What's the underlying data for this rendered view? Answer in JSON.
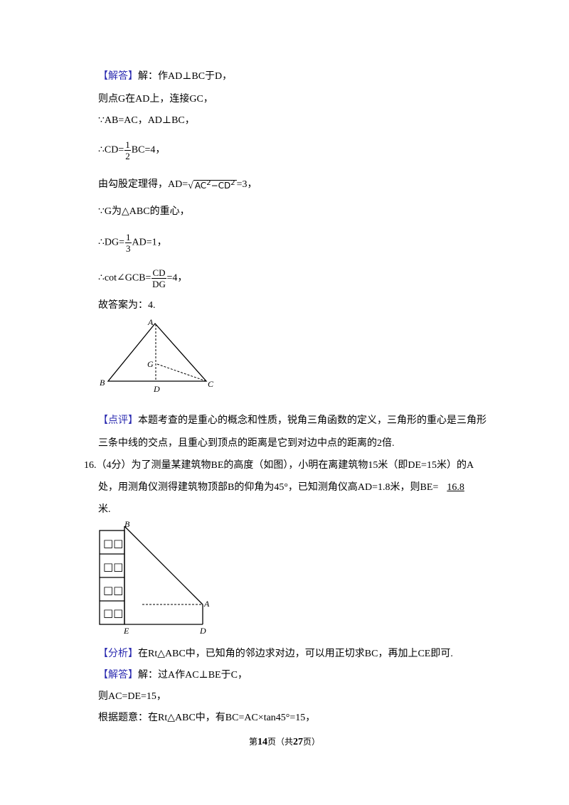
{
  "solution1": {
    "tag": "【解答】",
    "line1": "解：作AD⊥BC于D，",
    "line2": "则点G在AD上，连接GC，",
    "line3": "∵AB=AC，AD⊥BC，",
    "line4": {
      "prefix": "∴CD=",
      "numerator": "1",
      "denominator": "2",
      "suffix": "BC=4，"
    },
    "line5": {
      "prefix": "由勾股定理得，AD=",
      "radicand": [
        "AC",
        "2",
        "−CD",
        "2"
      ],
      "suffix": "=3，"
    },
    "line6": "∵G为△ABC的重心，",
    "line7": {
      "prefix": "∴DG=",
      "numerator": "1",
      "denominator": "3",
      "suffix": "AD=1，"
    },
    "line8": {
      "prefix": "∴cot∠GCB=",
      "numerator": "CD",
      "denominator": "DG",
      "suffix": "=4，"
    },
    "line9": "故答案为：4."
  },
  "figure1": {
    "labels": [
      "A",
      "G",
      "B",
      "D",
      "C"
    ]
  },
  "comment": {
    "tag": "【点评】",
    "line1": "本题考查的是重心的概念和性质，锐角三角函数的定义，三角形的重心是三角形",
    "line2": "三条中线的交点，且重心到顶点的距离是它到对边中点的距离的2倍."
  },
  "question16": {
    "line1": "16.（4分）为了测量某建筑物BE的高度（如图），小明在离建筑物15米（即DE=15米）的A",
    "line2": "处，用测角仪测得建筑物顶部B的仰角为45°，已知测角仪高AD=1.8米，则BE=",
    "answer": "16.8",
    "line3": "米."
  },
  "figure2": {
    "labels": [
      "B",
      "A",
      "E",
      "D"
    ],
    "boxes": [
      "□□",
      "□□",
      "□□",
      "□□"
    ]
  },
  "analysis": {
    "tag": "【分析】",
    "text": "在Rt△ABC中，已知角的邻边求对边，可以用正切求BC，再加上CE即可."
  },
  "solution2": {
    "tag": "【解答】",
    "line1": "解：过A作AC⊥BE于C，",
    "line2": "则AC=DE=15，",
    "line3": "根据题意：在Rt△ABC中，有BC=AC×tan45°=15，"
  },
  "footer": {
    "parts": [
      "第",
      "14",
      "页（共",
      "27",
      "页）"
    ]
  }
}
